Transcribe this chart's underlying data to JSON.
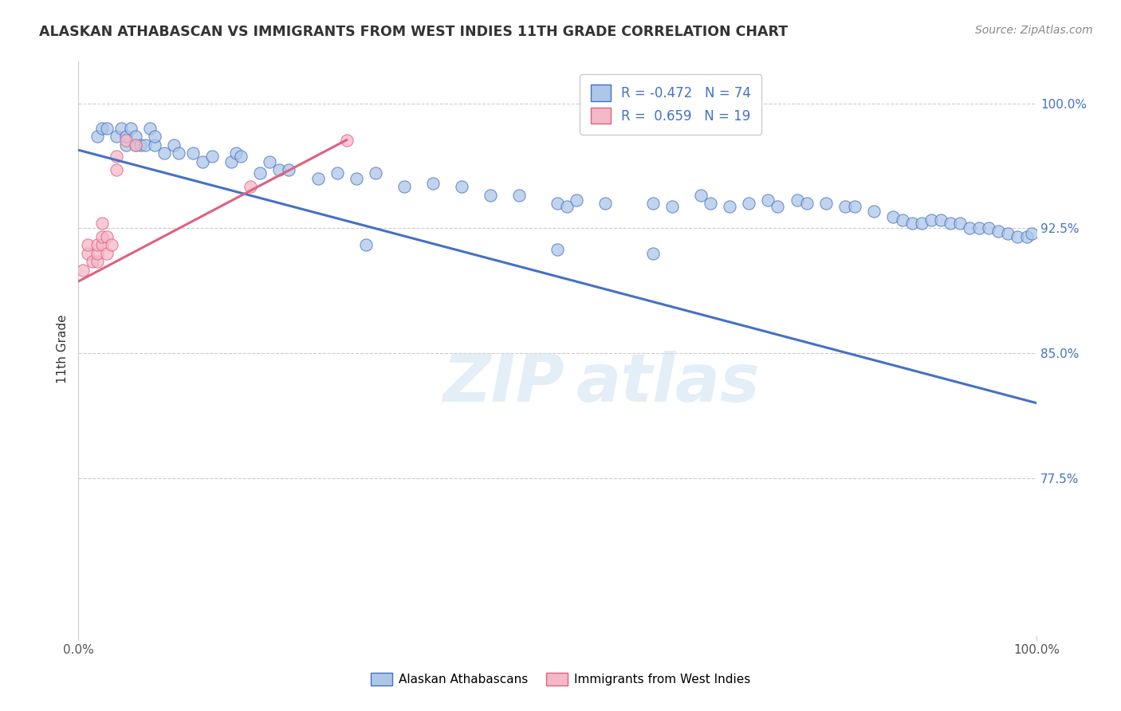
{
  "title": "ALASKAN ATHABASCAN VS IMMIGRANTS FROM WEST INDIES 11TH GRADE CORRELATION CHART",
  "source": "Source: ZipAtlas.com",
  "ylabel": "11th Grade",
  "xlim": [
    0.0,
    1.0
  ],
  "ylim": [
    0.68,
    1.025
  ],
  "yticks": [
    0.775,
    0.85,
    0.925,
    1.0
  ],
  "ytick_labels": [
    "77.5%",
    "85.0%",
    "92.5%",
    "100.0%"
  ],
  "xtick_labels": [
    "0.0%",
    "100.0%"
  ],
  "xticks": [
    0.0,
    1.0
  ],
  "r_blue": -0.472,
  "n_blue": 74,
  "r_pink": 0.659,
  "n_pink": 19,
  "blue_color": "#aec6e8",
  "pink_color": "#f4b8c8",
  "line_blue": "#4472c4",
  "line_pink": "#e06080",
  "watermark_zip": "ZIP",
  "watermark_atlas": "atlas",
  "blue_scatter_x": [
    0.02,
    0.025,
    0.03,
    0.04,
    0.045,
    0.05,
    0.05,
    0.055,
    0.06,
    0.06,
    0.065,
    0.07,
    0.075,
    0.08,
    0.08,
    0.09,
    0.1,
    0.105,
    0.12,
    0.13,
    0.14,
    0.16,
    0.165,
    0.17,
    0.19,
    0.2,
    0.21,
    0.22,
    0.25,
    0.27,
    0.29,
    0.31,
    0.34,
    0.37,
    0.4,
    0.43,
    0.46,
    0.5,
    0.51,
    0.52,
    0.55,
    0.6,
    0.62,
    0.65,
    0.66,
    0.68,
    0.7,
    0.72,
    0.73,
    0.75,
    0.76,
    0.78,
    0.8,
    0.81,
    0.83,
    0.85,
    0.86,
    0.87,
    0.88,
    0.89,
    0.9,
    0.91,
    0.92,
    0.93,
    0.94,
    0.95,
    0.96,
    0.97,
    0.98,
    0.99,
    0.995,
    0.6,
    0.5,
    0.3
  ],
  "blue_scatter_y": [
    0.98,
    0.985,
    0.985,
    0.98,
    0.985,
    0.975,
    0.98,
    0.985,
    0.975,
    0.98,
    0.975,
    0.975,
    0.985,
    0.975,
    0.98,
    0.97,
    0.975,
    0.97,
    0.97,
    0.965,
    0.968,
    0.965,
    0.97,
    0.968,
    0.958,
    0.965,
    0.96,
    0.96,
    0.955,
    0.958,
    0.955,
    0.958,
    0.95,
    0.952,
    0.95,
    0.945,
    0.945,
    0.94,
    0.938,
    0.942,
    0.94,
    0.94,
    0.938,
    0.945,
    0.94,
    0.938,
    0.94,
    0.942,
    0.938,
    0.942,
    0.94,
    0.94,
    0.938,
    0.938,
    0.935,
    0.932,
    0.93,
    0.928,
    0.928,
    0.93,
    0.93,
    0.928,
    0.928,
    0.925,
    0.925,
    0.925,
    0.923,
    0.922,
    0.92,
    0.92,
    0.922,
    0.91,
    0.912,
    0.915
  ],
  "pink_scatter_x": [
    0.005,
    0.01,
    0.01,
    0.015,
    0.02,
    0.02,
    0.02,
    0.025,
    0.025,
    0.025,
    0.03,
    0.03,
    0.035,
    0.04,
    0.04,
    0.05,
    0.06,
    0.18,
    0.28
  ],
  "pink_scatter_y": [
    0.9,
    0.91,
    0.915,
    0.905,
    0.905,
    0.91,
    0.915,
    0.915,
    0.92,
    0.928,
    0.91,
    0.92,
    0.915,
    0.96,
    0.968,
    0.978,
    0.975,
    0.95,
    0.978
  ],
  "blue_line_x": [
    0.0,
    1.0
  ],
  "blue_line_y": [
    0.972,
    0.82
  ],
  "pink_line_x": [
    0.0,
    0.28
  ],
  "pink_line_y": [
    0.893,
    0.978
  ]
}
